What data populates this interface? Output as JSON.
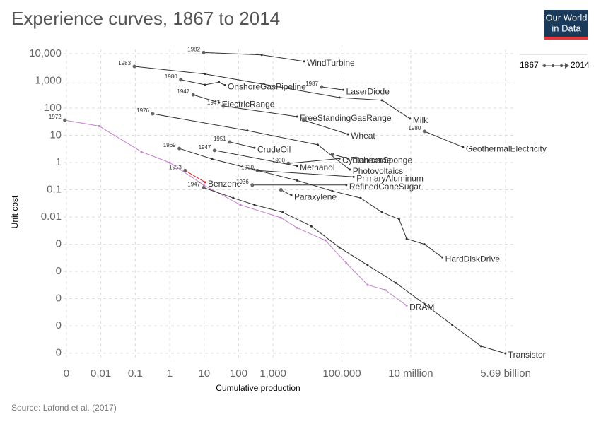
{
  "chart_data": {
    "type": "line",
    "title": "Experience curves, 1867 to 2014",
    "logo": [
      "Our World",
      "in Data"
    ],
    "x_label": "Cumulative production",
    "y_label": "Unit cost",
    "source": "Source: Lafond et al. (2017)",
    "legend_range": [
      "1867",
      "2014"
    ],
    "log_x": true,
    "log_y": true,
    "grid": true,
    "xlim": [
      0.00083,
      10000000000
    ],
    "ylim": [
      5.4e-08,
      14300
    ],
    "xticks": [
      {
        "value": 0.001,
        "label": "0"
      },
      0.01,
      0.1,
      1,
      10,
      100,
      {
        "value": 1000,
        "label": "1,000"
      },
      {
        "value": 100000,
        "label": "100,000"
      },
      {
        "value": 10000000,
        "label": "10 million"
      },
      {
        "value": 5690000000,
        "label": "5.69 billion"
      }
    ],
    "yticks": [
      {
        "value": 10000,
        "label": "10,000"
      },
      {
        "value": 1000,
        "label": "1,000"
      },
      100,
      10,
      1,
      0.1,
      0.01,
      {
        "value": 0.001,
        "label": "0"
      },
      {
        "value": 0.0001,
        "label": "0"
      },
      {
        "value": 1e-05,
        "label": "0"
      },
      {
        "value": 1e-06,
        "label": "0"
      },
      {
        "value": 1e-07,
        "label": "0"
      }
    ],
    "series": [
      {
        "name": "WindTurbine",
        "start_year": "1982",
        "color": "#333333",
        "x": [
          9.7,
          470,
          8000
        ],
        "values": [
          11000,
          9000,
          5200
        ]
      },
      {
        "name": "OnshoreGasPipeline",
        "start_year": "1980",
        "color": "#333333",
        "x": [
          2.1,
          10.6,
          27,
          40
        ],
        "values": [
          1100,
          720,
          900,
          700
        ]
      },
      {
        "name": "LaserDiode",
        "start_year": "1987",
        "color": "#333333",
        "x": [
          26000,
          110000
        ],
        "values": [
          600,
          470
        ]
      },
      {
        "name": "Milk",
        "start_year": "1983",
        "color": "#333333",
        "x": [
          0.094,
          10.6,
          85000,
          1450000,
          9500000
        ],
        "values": [
          3400,
          1800,
          245,
          195,
          41
        ]
      },
      {
        "name": "ElectricRange",
        "start_year": "1947",
        "color": "#333333",
        "x": [
          4.8,
          27
        ],
        "values": [
          310,
          160
        ]
      },
      {
        "name": "FreeStandingGasRange",
        "start_year": "1947",
        "color": "#333333",
        "x": [
          36,
          5000
        ],
        "values": [
          120,
          49
        ]
      },
      {
        "name": "Wheat",
        "color": "#333333",
        "x": [
          7800,
          150000
        ],
        "values": [
          36,
          11
        ]
      },
      {
        "name": "GeothermalElectricity",
        "start_year": "1980",
        "color": "#333333",
        "x": [
          25000000,
          330000000
        ],
        "values": [
          14,
          3.7
        ]
      },
      {
        "name": "CrudeOil",
        "start_year": "1951",
        "color": "#333333",
        "x": [
          55,
          290
        ],
        "values": [
          5.7,
          3.5
        ]
      },
      {
        "name": "Cyclohexane",
        "start_year": "1930",
        "color": "#333333",
        "x": [
          2800,
          85000
        ],
        "values": [
          0.93,
          1.4
        ]
      },
      {
        "name": "Methanol",
        "start_year": "1947",
        "color": "#333333",
        "x": [
          20,
          5000
        ],
        "values": [
          2.8,
          0.75
        ]
      },
      {
        "name": "TitaniumSponge",
        "color": "#333333",
        "x": [
          53000,
          150000
        ],
        "values": [
          2.0,
          1.4
        ]
      },
      {
        "name": "Photovoltaics",
        "start_year": "1976",
        "color": "#333333",
        "x": [
          0.32,
          180,
          20000,
          170000
        ],
        "values": [
          62,
          15,
          4.5,
          0.55
        ]
      },
      {
        "name": "PrimaryAluminum",
        "start_year": "1930",
        "color": "#333333",
        "x": [
          350,
          220000
        ],
        "values": [
          0.51,
          0.3
        ]
      },
      {
        "name": "Benzene",
        "start_year": "1953",
        "color": "#d62728",
        "x": [
          2.8,
          10.6
        ],
        "values": [
          0.51,
          0.19
        ]
      },
      {
        "name": "RefinedCaneSugar",
        "start_year": "1936",
        "color": "#333333",
        "x": [
          250,
          135000
        ],
        "values": [
          0.15,
          0.15
        ]
      },
      {
        "name": "Paraxylene",
        "color": "#333333",
        "x": [
          1700,
          3400
        ],
        "values": [
          0.1,
          0.063
        ]
      },
      {
        "name": "HardDiskDrive",
        "start_year": "1969",
        "color": "#333333",
        "x": [
          1.9,
          17,
          290,
          5000,
          53000,
          350000,
          1450000,
          4600000,
          7600000,
          25000000,
          83000000
        ],
        "values": [
          3.3,
          1.35,
          0.55,
          0.22,
          0.09,
          0.05,
          0.015,
          0.0083,
          0.0016,
          0.001,
          0.00033
        ]
      },
      {
        "name": "DRAM",
        "start_year": "1972",
        "color": "#c77fcf",
        "x": [
          0.0009,
          0.0089,
          0.15,
          1,
          9.7,
          113,
          1700,
          5000,
          33000,
          135000,
          560000,
          1800000,
          7600000
        ],
        "values": [
          36,
          22,
          2.5,
          1,
          0.15,
          0.028,
          0.0094,
          0.004,
          0.0014,
          0.0002,
          3.2e-05,
          2.1e-05,
          5.6e-06
        ]
      },
      {
        "name": "Transistor",
        "start_year": "1947",
        "color": "#333333",
        "x": [
          9.7,
          70,
          290,
          1900,
          13000,
          85000,
          560000,
          3700000,
          25000000,
          160000000,
          1100000000,
          5600000000
        ],
        "values": [
          0.12,
          0.05,
          0.028,
          0.015,
          0.0046,
          0.00076,
          0.00017,
          3.8e-05,
          6.4e-06,
          1.1e-06,
          1.8e-07,
          9.8e-08
        ]
      }
    ]
  }
}
